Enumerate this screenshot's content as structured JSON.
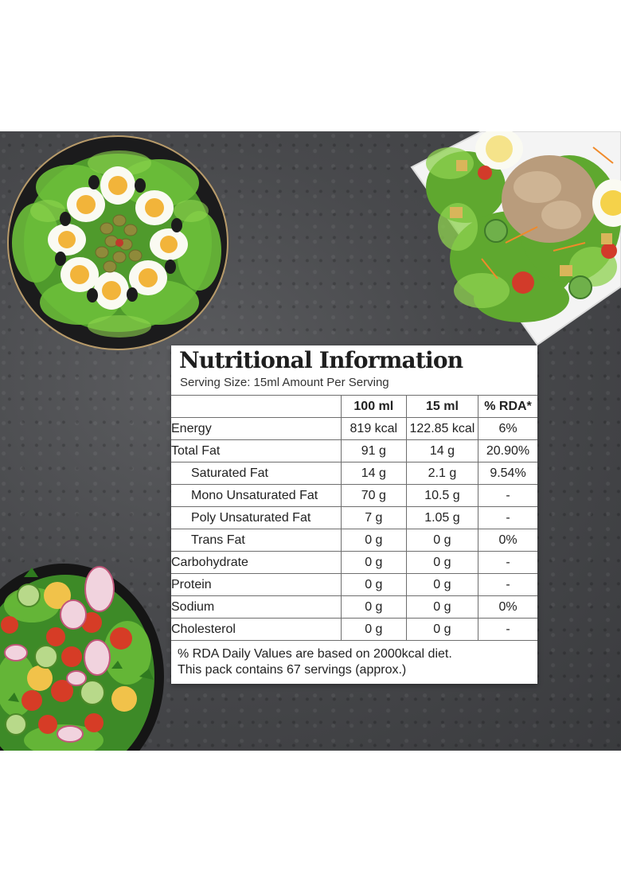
{
  "panel": {
    "title": "Nutritional Information",
    "subtitle": "Serving Size: 15ml  Amount Per Serving",
    "columns": [
      "",
      "100 ml",
      "15 ml",
      "% RDA*"
    ],
    "rows": [
      {
        "name": "Energy",
        "c1": "819 kcal",
        "c2": "122.85 kcal",
        "c3": "6%"
      },
      {
        "name": "Total Fat",
        "c1": "91 g",
        "c2": "14 g",
        "c3": "20.90%"
      },
      {
        "name": "Saturated Fat",
        "c1": "14 g",
        "c2": "2.1 g",
        "c3": "9.54%"
      },
      {
        "name": "Mono Unsaturated Fat",
        "c1": "70 g",
        "c2": "10.5 g",
        "c3": "-"
      },
      {
        "name": "Poly Unsaturated Fat",
        "c1": "7 g",
        "c2": "1.05 g",
        "c3": "-"
      },
      {
        "name": "Trans Fat",
        "c1": "0 g",
        "c2": "0 g",
        "c3": "0%"
      },
      {
        "name": "Carbohydrate",
        "c1": "0 g",
        "c2": "0 g",
        "c3": "-"
      },
      {
        "name": "Protein",
        "c1": "0 g",
        "c2": "0 g",
        "c3": "-"
      },
      {
        "name": "Sodium",
        "c1": "0 g",
        "c2": "0 g",
        "c3": "0%"
      },
      {
        "name": "Cholesterol",
        "c1": "0 g",
        "c2": "0 g",
        "c3": "-"
      }
    ],
    "footnote_1": "% RDA Daily Values are based on 2000kcal diet.",
    "footnote_2": "This pack contains 67 servings (approx.)"
  },
  "images": {
    "egg_salad": "egg-olive-salad-plate",
    "tuna_salad": "tuna-salad-plate",
    "veg_salad": "vegetable-salad-bowl"
  }
}
